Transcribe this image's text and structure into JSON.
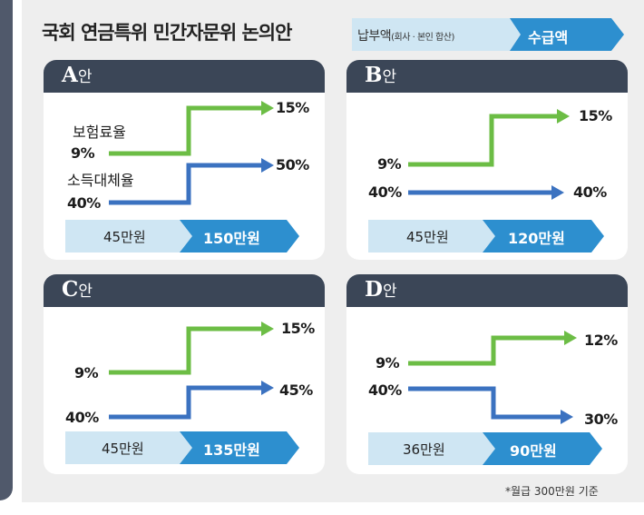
{
  "header": {
    "title": "국회 연금특위 민간자문위 논의안",
    "legend_pay": "납부액",
    "legend_pay_note": "(회사 · 본인 합산)",
    "legend_recv": "수급액"
  },
  "colors": {
    "premium": "#6cbd45",
    "replacement": "#3b72c0",
    "panel_header": "#3b4657",
    "bar_pay": "#cfe6f3",
    "bar_recv": "#2d8fcf"
  },
  "categories": {
    "premium_label": "보험료율",
    "replacement_label": "소득대체율"
  },
  "panels": [
    {
      "letter": "A",
      "suffix": "안",
      "premium_from": "9%",
      "premium_to": "15%",
      "replacement_from": "40%",
      "replacement_to": "50%",
      "pay": "45만원",
      "receive": "150만원"
    },
    {
      "letter": "B",
      "suffix": "안",
      "premium_from": "9%",
      "premium_to": "15%",
      "replacement_from": "40%",
      "replacement_to": "40%",
      "pay": "45만원",
      "receive": "120만원"
    },
    {
      "letter": "C",
      "suffix": "안",
      "premium_from": "9%",
      "premium_to": "15%",
      "replacement_from": "40%",
      "replacement_to": "45%",
      "pay": "45만원",
      "receive": "135만원"
    },
    {
      "letter": "D",
      "suffix": "안",
      "premium_from": "9%",
      "premium_to": "12%",
      "replacement_from": "40%",
      "replacement_to": "30%",
      "pay": "36만원",
      "receive": "90만원"
    }
  ],
  "footnote": "*월급 300만원 기준"
}
